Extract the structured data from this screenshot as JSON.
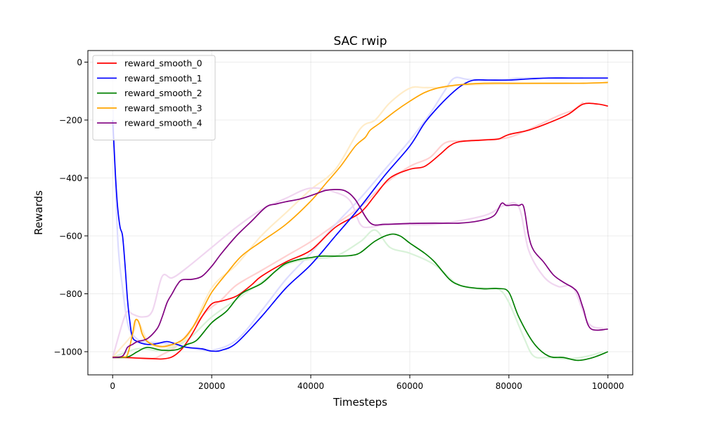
{
  "chart_data": {
    "type": "line",
    "title": "SAC rwip",
    "xlabel": "Timesteps",
    "ylabel": "Rewards",
    "xlim": [
      -5000,
      105000
    ],
    "ylim": [
      -1080,
      40
    ],
    "x_ticks": [
      0,
      20000,
      40000,
      60000,
      80000,
      100000
    ],
    "x_tick_labels": [
      "0",
      "20000",
      "40000",
      "60000",
      "80000",
      "100000"
    ],
    "y_ticks": [
      0,
      -200,
      -400,
      -600,
      -800,
      -1000
    ],
    "y_tick_labels": [
      "0",
      "−200",
      "−400",
      "−600",
      "−800",
      "−1000"
    ],
    "grid": true,
    "legend_position": "top-left",
    "series": [
      {
        "name": "reward_smooth_0",
        "color": "#ff0000",
        "x": [
          0,
          3000,
          5000,
          8000,
          10000,
          12000,
          14000,
          16000,
          18000,
          20000,
          22000,
          25000,
          28000,
          30000,
          35000,
          40000,
          45000,
          50000,
          53000,
          56000,
          60000,
          63000,
          66000,
          68000,
          70000,
          74000,
          76000,
          78000,
          80000,
          84000,
          88000,
          92000,
          95000,
          98000,
          100000
        ],
        "y": [
          -1020,
          -1020,
          -1022,
          -1024,
          -1025,
          -1018,
          -990,
          -940,
          -880,
          -835,
          -825,
          -808,
          -770,
          -740,
          -690,
          -650,
          -570,
          -520,
          -460,
          -400,
          -370,
          -360,
          -320,
          -290,
          -275,
          -270,
          -268,
          -265,
          -250,
          -235,
          -210,
          -180,
          -145,
          -145,
          -152
        ]
      },
      {
        "name": "reward_smooth_1",
        "color": "#0000ff",
        "x": [
          0,
          300,
          600,
          1000,
          1500,
          2000,
          2500,
          3000,
          3500,
          4000,
          5000,
          7000,
          9000,
          11000,
          13000,
          15000,
          18000,
          20000,
          22000,
          25000,
          30000,
          35000,
          40000,
          45000,
          50000,
          55000,
          60000,
          63000,
          66000,
          69000,
          71000,
          73000,
          76000,
          80000,
          84000,
          88000,
          92000,
          96000,
          100000
        ],
        "y": [
          -200,
          -300,
          -400,
          -500,
          -570,
          -600,
          -700,
          -820,
          -900,
          -950,
          -965,
          -975,
          -972,
          -965,
          -975,
          -985,
          -990,
          -998,
          -995,
          -970,
          -880,
          -780,
          -700,
          -600,
          -500,
          -390,
          -290,
          -210,
          -150,
          -100,
          -75,
          -62,
          -62,
          -62,
          -58,
          -55,
          -55,
          -55,
          -55
        ]
      },
      {
        "name": "reward_smooth_2",
        "color": "#008000",
        "x": [
          0,
          3000,
          5000,
          7000,
          10000,
          13000,
          15000,
          17000,
          20000,
          23000,
          26000,
          30000,
          33000,
          35000,
          38000,
          40000,
          42000,
          45000,
          48000,
          50000,
          53000,
          56000,
          58000,
          60000,
          63000,
          65000,
          68000,
          70000,
          72000,
          75000,
          78000,
          80000,
          82000,
          85000,
          88000,
          91000,
          94000,
          97000,
          100000
        ],
        "y": [
          -1020,
          -1018,
          -1000,
          -985,
          -995,
          -993,
          -975,
          -960,
          -900,
          -860,
          -800,
          -765,
          -720,
          -695,
          -680,
          -675,
          -670,
          -670,
          -668,
          -658,
          -618,
          -595,
          -600,
          -625,
          -660,
          -690,
          -750,
          -770,
          -778,
          -783,
          -782,
          -795,
          -880,
          -970,
          -1015,
          -1020,
          -1030,
          -1020,
          -1000
        ]
      },
      {
        "name": "reward_smooth_3",
        "color": "#ffa500",
        "x": [
          0,
          2000,
          3000,
          4000,
          4500,
          5000,
          5500,
          6000,
          7000,
          9000,
          11000,
          14000,
          16000,
          18000,
          20000,
          23000,
          26000,
          30000,
          35000,
          40000,
          43000,
          46000,
          49000,
          51000,
          52000,
          54000,
          57000,
          60000,
          63000,
          66000,
          70000,
          75000,
          80000,
          85000,
          90000,
          95000,
          100000
        ],
        "y": [
          -1018,
          -1018,
          -1010,
          -940,
          -895,
          -890,
          -910,
          -940,
          -965,
          -980,
          -980,
          -960,
          -920,
          -860,
          -795,
          -730,
          -670,
          -620,
          -560,
          -480,
          -420,
          -360,
          -290,
          -260,
          -235,
          -210,
          -170,
          -135,
          -105,
          -88,
          -78,
          -73,
          -73,
          -73,
          -73,
          -73,
          -70
        ]
      },
      {
        "name": "reward_smooth_4",
        "color": "#800080",
        "x": [
          0,
          2000,
          3000,
          4000,
          5000,
          7000,
          9000,
          10000,
          11000,
          12000,
          13000,
          14000,
          16000,
          18000,
          20000,
          22000,
          25000,
          28000,
          31000,
          33000,
          35000,
          38000,
          41000,
          43000,
          45000,
          47000,
          49000,
          52000,
          55000,
          60000,
          65000,
          70000,
          74000,
          77000,
          78500,
          79500,
          81000,
          82000,
          83000,
          84000,
          85000,
          87000,
          89000,
          91000,
          93000,
          94000,
          95000,
          96500,
          100000
        ],
        "y": [
          -1020,
          -1015,
          -985,
          -975,
          -965,
          -955,
          -920,
          -880,
          -830,
          -800,
          -770,
          -752,
          -750,
          -740,
          -705,
          -660,
          -600,
          -550,
          -500,
          -490,
          -482,
          -472,
          -455,
          -443,
          -440,
          -445,
          -475,
          -555,
          -560,
          -557,
          -556,
          -556,
          -548,
          -530,
          -488,
          -495,
          -493,
          -495,
          -500,
          -600,
          -650,
          -690,
          -735,
          -760,
          -780,
          -800,
          -850,
          -920,
          -922
        ]
      }
    ],
    "faded_series": [
      {
        "color": "#ffd0d0",
        "x": [
          0,
          4000,
          8000,
          10000,
          13000,
          16000,
          19000,
          22000,
          25000,
          30000,
          35000,
          40000,
          45000,
          50000,
          55000,
          60000,
          64000,
          67000,
          70000,
          75000,
          80000,
          85000,
          90000,
          93000,
          95000
        ],
        "y": [
          -1020,
          -1022,
          -1024,
          -1010,
          -980,
          -920,
          -860,
          -820,
          -770,
          -720,
          -670,
          -620,
          -560,
          -500,
          -420,
          -360,
          -330,
          -280,
          -272,
          -268,
          -260,
          -225,
          -185,
          -165,
          -138
        ]
      },
      {
        "color": "#dcdcff",
        "x": [
          0,
          1000,
          2000,
          3000,
          4000,
          6000,
          10000,
          15000,
          20000,
          25000,
          30000,
          35000,
          40000,
          45000,
          50000,
          55000,
          60000,
          64000,
          67000,
          69000,
          72000,
          78000,
          82000,
          88000,
          95000
        ],
        "y": [
          -120,
          -600,
          -780,
          -900,
          -940,
          -965,
          -970,
          -985,
          -995,
          -960,
          -860,
          -750,
          -660,
          -560,
          -470,
          -370,
          -270,
          -180,
          -100,
          -55,
          -60,
          -62,
          -55,
          -55,
          -55
        ]
      },
      {
        "color": "#d9f2d9",
        "x": [
          0,
          5000,
          10000,
          15000,
          20000,
          25000,
          30000,
          35000,
          40000,
          45000,
          50000,
          53000,
          56000,
          60000,
          65000,
          70000,
          75000,
          78000,
          80000,
          83000,
          85000,
          88000,
          92000,
          96000,
          99000
        ],
        "y": [
          -1020,
          -990,
          -995,
          -960,
          -880,
          -820,
          -760,
          -700,
          -680,
          -670,
          -620,
          -580,
          -640,
          -660,
          -700,
          -770,
          -780,
          -785,
          -830,
          -950,
          -1015,
          -1020,
          -1025,
          -1015,
          -1000
        ]
      },
      {
        "color": "#ffecc8",
        "x": [
          0,
          4000,
          5000,
          7000,
          10000,
          15000,
          20000,
          25000,
          30000,
          35000,
          40000,
          45000,
          50000,
          53000,
          56000,
          60000,
          63000,
          67000,
          70000,
          80000,
          90000,
          100000
        ],
        "y": [
          -1018,
          -940,
          -890,
          -960,
          -985,
          -950,
          -780,
          -700,
          -600,
          -520,
          -440,
          -370,
          -230,
          -200,
          -140,
          -90,
          -88,
          -88,
          -80,
          -75,
          -73,
          -72
        ]
      },
      {
        "color": "#f0d6f0",
        "x": [
          0,
          2000,
          3000,
          4000,
          6000,
          8000,
          10000,
          12000,
          15000,
          20000,
          25000,
          30000,
          35000,
          40000,
          45000,
          48000,
          50000,
          52000,
          56000,
          65000,
          75000,
          79000,
          82000,
          84000,
          87000,
          90000,
          93000,
          96000,
          99000
        ],
        "y": [
          -1020,
          -900,
          -860,
          -870,
          -880,
          -860,
          -740,
          -745,
          -710,
          -640,
          -570,
          -510,
          -470,
          -435,
          -450,
          -480,
          -560,
          -570,
          -560,
          -560,
          -530,
          -495,
          -500,
          -650,
          -740,
          -775,
          -780,
          -900,
          -920
        ]
      }
    ]
  }
}
